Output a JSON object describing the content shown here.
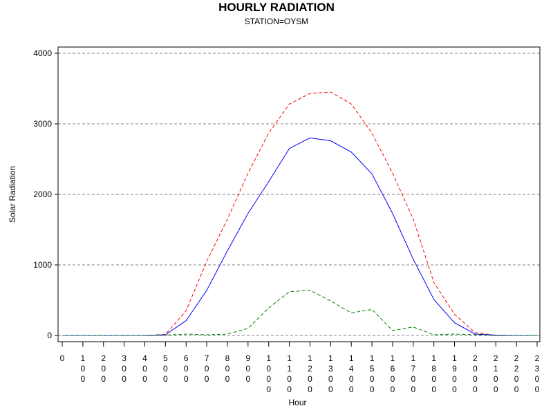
{
  "title": "HOURLY RADIATION",
  "subtitle": "STATION=OYSM",
  "chart_data": {
    "type": "line",
    "title": "HOURLY RADIATION",
    "subtitle": "STATION=OYSM",
    "xlabel": "Hour",
    "ylabel": "Solar Radiation",
    "x": [
      0,
      100,
      200,
      300,
      400,
      500,
      600,
      700,
      800,
      900,
      1000,
      1100,
      1200,
      1300,
      1400,
      1500,
      1600,
      1700,
      1800,
      1900,
      2000,
      2100,
      2200,
      2300
    ],
    "x_tick_labels": [
      "0",
      "1\n0\n0",
      "2\n0\n0",
      "3\n0\n0",
      "4\n0\n0",
      "5\n0\n0",
      "6\n0\n0",
      "7\n0\n0",
      "8\n0\n0",
      "9\n0\n0",
      "1\n0\n0\n0",
      "1\n1\n0\n0",
      "1\n2\n0\n0",
      "1\n3\n0\n0",
      "1\n4\n0\n0",
      "1\n5\n0\n0",
      "1\n6\n0\n0",
      "1\n7\n0\n0",
      "1\n8\n0\n0",
      "1\n9\n0\n0",
      "2\n0\n0\n0",
      "2\n1\n0\n0",
      "2\n2\n0\n0",
      "2\n3\n0\n0"
    ],
    "y_ticks": [
      0,
      1000,
      2000,
      3000,
      4000
    ],
    "ylim": [
      -80,
      4100
    ],
    "grid": "horizontal dashed",
    "series": [
      {
        "color": "#ff0000",
        "dash": "dashed",
        "values": [
          0,
          0,
          0,
          0,
          0,
          15,
          350,
          1050,
          1650,
          2300,
          2870,
          3280,
          3430,
          3450,
          3280,
          2870,
          2300,
          1650,
          750,
          300,
          40,
          0,
          0,
          0
        ]
      },
      {
        "color": "#0000ff",
        "dash": "solid",
        "values": [
          0,
          0,
          0,
          0,
          0,
          10,
          210,
          640,
          1200,
          1730,
          2180,
          2650,
          2800,
          2760,
          2600,
          2290,
          1730,
          1080,
          510,
          180,
          20,
          5,
          0,
          0
        ]
      },
      {
        "color": "#008000",
        "dash": "dashed",
        "values": [
          0,
          0,
          0,
          0,
          0,
          5,
          20,
          10,
          20,
          100,
          390,
          620,
          640,
          490,
          320,
          370,
          70,
          120,
          10,
          20,
          10,
          0,
          0,
          0
        ]
      }
    ]
  }
}
